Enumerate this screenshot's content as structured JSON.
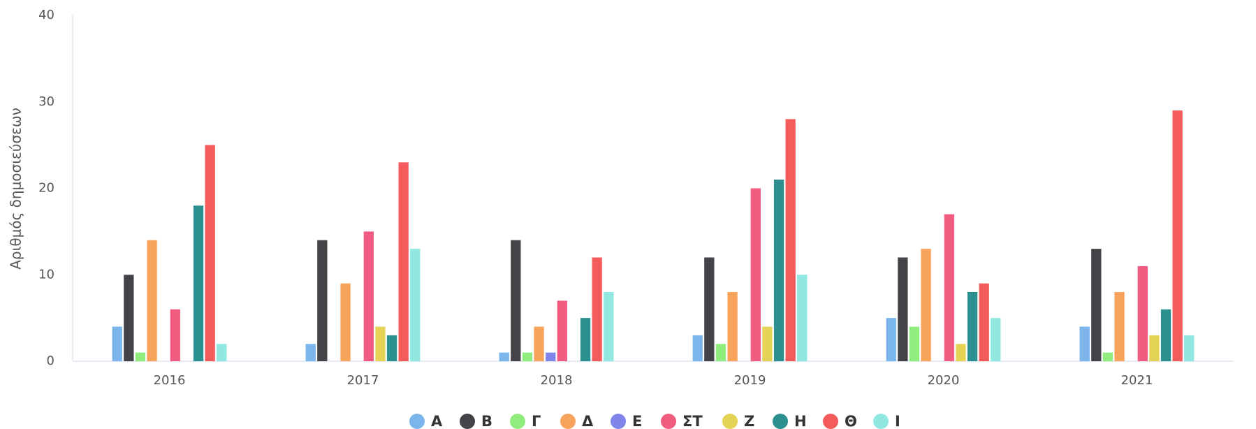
{
  "chart_data": {
    "type": "bar",
    "y_label": "Αριθμός δημοσιεύσεων",
    "categories": [
      "2016",
      "2017",
      "2018",
      "2019",
      "2020",
      "2021"
    ],
    "series": [
      {
        "name": "Α",
        "color": "#7cb5ec",
        "values": [
          4,
          2,
          1,
          3,
          5,
          4
        ]
      },
      {
        "name": "Β",
        "color": "#434348",
        "values": [
          10,
          14,
          14,
          12,
          12,
          13
        ]
      },
      {
        "name": "Γ",
        "color": "#90ed7d",
        "values": [
          1,
          0,
          1,
          2,
          4,
          1
        ]
      },
      {
        "name": "Δ",
        "color": "#f7a35c",
        "values": [
          14,
          9,
          4,
          8,
          13,
          8
        ]
      },
      {
        "name": "Ε",
        "color": "#8085e9",
        "values": [
          0,
          0,
          1,
          0,
          0,
          0
        ]
      },
      {
        "name": "ΣΤ",
        "color": "#f15c80",
        "values": [
          6,
          15,
          7,
          20,
          17,
          11
        ]
      },
      {
        "name": "Ζ",
        "color": "#e4d354",
        "values": [
          0,
          4,
          0,
          4,
          2,
          3
        ]
      },
      {
        "name": "Η",
        "color": "#2b908f",
        "values": [
          18,
          3,
          5,
          21,
          8,
          6
        ]
      },
      {
        "name": "Θ",
        "color": "#f45b5b",
        "values": [
          25,
          23,
          12,
          28,
          9,
          29
        ]
      },
      {
        "name": "Ι",
        "color": "#91e8e1",
        "values": [
          2,
          13,
          8,
          10,
          5,
          3
        ]
      }
    ],
    "ylim": [
      0,
      40
    ],
    "yticks": [
      0,
      10,
      20,
      30,
      40
    ],
    "grid": false,
    "legend": "bottom"
  }
}
